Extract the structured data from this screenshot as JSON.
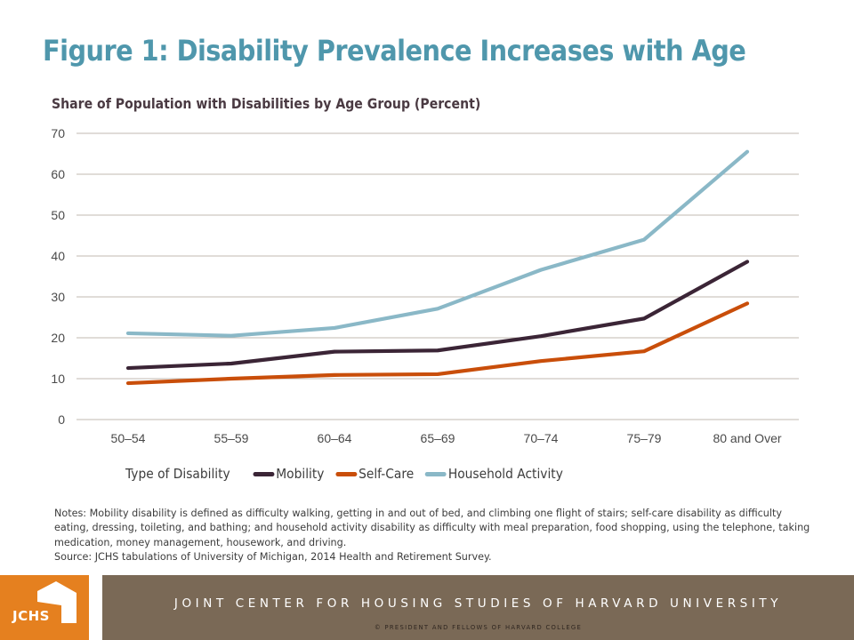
{
  "title": "Figure 1: Disability Prevalence Increases with Age",
  "chart_data": {
    "type": "line",
    "title": "Share of Population  with Disabilities  by Age Group  (Percent)",
    "xlabel": "",
    "ylabel": "",
    "categories": [
      "50–54",
      "55–59",
      "60–64",
      "65–69",
      "70–74",
      "75–79",
      "80 and Over"
    ],
    "ylim": [
      0,
      70
    ],
    "yticks": [
      0,
      10,
      20,
      30,
      40,
      50,
      60,
      70
    ],
    "grid": true,
    "legend_title": "Type of Disability",
    "legend_position": "bottom",
    "series": [
      {
        "name": "Mobility",
        "color": "#3b2536",
        "values": [
          12.6,
          13.7,
          16.6,
          16.9,
          20.4,
          24.7,
          38.6
        ]
      },
      {
        "name": "Self-Care",
        "color": "#c94e0a",
        "values": [
          8.9,
          10.0,
          10.9,
          11.1,
          14.3,
          16.7,
          28.4
        ]
      },
      {
        "name": "Household Activity",
        "color": "#8ab8c7",
        "values": [
          21.1,
          20.5,
          22.4,
          27.1,
          36.6,
          44.0,
          65.5
        ]
      }
    ]
  },
  "notes": [
    "Notes: Mobility disability is defined as difficulty walking, getting in and out of bed, and climbing one flight of stairs; self-care disability as difficulty eating, dressing, toileting, and bathing; and household activity disability as difficulty with meal preparation, food shopping, using the telephone, taking medication, money management, housework, and driving.",
    "Source: JCHS tabulations of University of Michigan, 2014 Health and Retirement Survey."
  ],
  "footer": {
    "logo_text": "JCHS",
    "organization": "JOINT CENTER FOR HOUSING STUDIES OF HARVARD UNIVERSITY",
    "copyright": "© PRESIDENT  AND FELLOWS  OF HARVARD COLLEGE"
  }
}
